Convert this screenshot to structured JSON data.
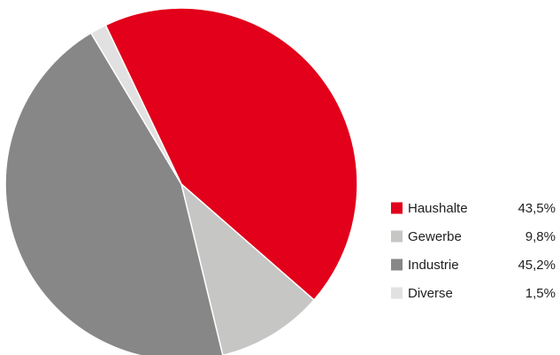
{
  "chart_data": {
    "type": "pie",
    "title": "",
    "legend_position": "right",
    "start_angle_deg": 244.5,
    "slices": [
      {
        "label": "Haushalte",
        "value": 43.5,
        "value_label": "43,5%",
        "color": "#e2001a"
      },
      {
        "label": "Gewerbe",
        "value": 9.8,
        "value_label": "9,8%",
        "color": "#c6c6c5"
      },
      {
        "label": "Industrie",
        "value": 45.2,
        "value_label": "45,2%",
        "color": "#878787"
      },
      {
        "label": "Diverse",
        "value": 1.5,
        "value_label": "1,5%",
        "color": "#e1e1e1"
      }
    ]
  }
}
